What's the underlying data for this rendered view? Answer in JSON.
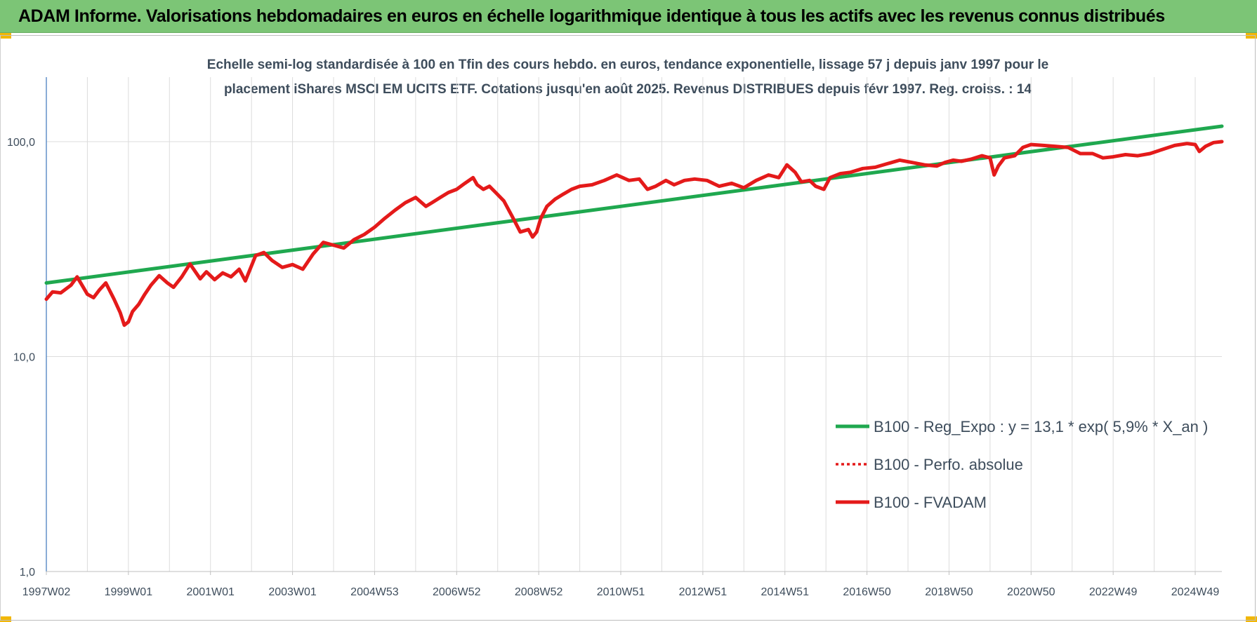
{
  "header": {
    "title": "ADAM Informe. Valorisations hebdomadaires en euros en échelle logarithmique identique à tous les actifs avec les revenus connus distribués"
  },
  "colors": {
    "header_bg": "#7cc576",
    "trend": "#1fa84f",
    "series": "#e41a1a",
    "grid": "#dcdcdc",
    "axis": "#4a7fbf",
    "text": "#3e4d5c"
  },
  "chart_data": {
    "type": "line",
    "title": "Echelle semi-log standardisée à 100 en Tfin des cours hebdo. en euros, tendance exponentielle, lissage 57 j depuis janv 1997 pour le",
    "subtitle": "placement iShares MSCI EM UCITS ETF. Cotations jusqu'en août 2025. Revenus DISTRIBUES depuis févr 1997. Reg. croiss. : 14",
    "y_scale": "log",
    "ylim": [
      1,
      200
    ],
    "y_ticks": [
      "1,0",
      "10,0",
      "100,0"
    ],
    "y_tick_values": [
      1,
      10,
      100
    ],
    "xlim": [
      1997.0,
      2025.65
    ],
    "x_ticks": [
      {
        "label": "1997W02",
        "x": 1997.0
      },
      {
        "label": "1999W01",
        "x": 1999.0
      },
      {
        "label": "2001W01",
        "x": 2001.0
      },
      {
        "label": "2003W01",
        "x": 2003.0
      },
      {
        "label": "2004W53",
        "x": 2005.0
      },
      {
        "label": "2006W52",
        "x": 2007.0
      },
      {
        "label": "2008W52",
        "x": 2009.0
      },
      {
        "label": "2010W51",
        "x": 2011.0
      },
      {
        "label": "2012W51",
        "x": 2013.0
      },
      {
        "label": "2014W51",
        "x": 2015.0
      },
      {
        "label": "2016W50",
        "x": 2017.0
      },
      {
        "label": "2018W50",
        "x": 2019.0
      },
      {
        "label": "2020W50",
        "x": 2021.0
      },
      {
        "label": "2022W49",
        "x": 2023.0
      },
      {
        "label": "2024W49",
        "x": 2025.0
      }
    ],
    "grid": "vertical and horizontal",
    "legend_position": "bottom-right",
    "series": [
      {
        "name": "B100 - Reg_Expo : y = 13,1 * exp( 5,9% *  X_an )",
        "color": "#1fa84f",
        "style": "solid",
        "x": [
          1997.0,
          2025.65
        ],
        "y": [
          22,
          118
        ]
      },
      {
        "name": "B100 - Perfo. absolue",
        "color": "#e41a1a",
        "style": "dotted",
        "x": [],
        "y": []
      },
      {
        "name": "B100 - FVADAM",
        "color": "#e41a1a",
        "style": "solid",
        "x": [
          1997.0,
          1997.15,
          1997.35,
          1997.6,
          1997.75,
          1997.9,
          1998.0,
          1998.15,
          1998.3,
          1998.45,
          1998.65,
          1998.8,
          1998.9,
          1999.0,
          1999.1,
          1999.25,
          1999.4,
          1999.55,
          1999.75,
          1999.95,
          2000.1,
          2000.3,
          2000.5,
          2000.75,
          2000.9,
          2001.1,
          2001.3,
          2001.5,
          2001.7,
          2001.85,
          2002.1,
          2002.3,
          2002.5,
          2002.75,
          2003.0,
          2003.25,
          2003.5,
          2003.75,
          2004.0,
          2004.25,
          2004.5,
          2004.75,
          2005.0,
          2005.25,
          2005.5,
          2005.75,
          2006.0,
          2006.25,
          2006.4,
          2006.6,
          2006.8,
          2007.0,
          2007.2,
          2007.4,
          2007.5,
          2007.65,
          2007.8,
          2007.95,
          2008.15,
          2008.35,
          2008.55,
          2008.75,
          2008.85,
          2008.95,
          2009.05,
          2009.2,
          2009.4,
          2009.6,
          2009.8,
          2010.0,
          2010.3,
          2010.6,
          2010.9,
          2011.2,
          2011.45,
          2011.65,
          2011.85,
          2012.1,
          2012.3,
          2012.55,
          2012.8,
          2013.1,
          2013.4,
          2013.7,
          2014.0,
          2014.3,
          2014.6,
          2014.85,
          2015.05,
          2015.25,
          2015.4,
          2015.6,
          2015.75,
          2015.95,
          2016.1,
          2016.35,
          2016.6,
          2016.9,
          2017.2,
          2017.5,
          2017.8,
          2018.1,
          2018.4,
          2018.7,
          2018.9,
          2019.1,
          2019.3,
          2019.55,
          2019.8,
          2020.0,
          2020.1,
          2020.2,
          2020.35,
          2020.6,
          2020.8,
          2021.0,
          2021.3,
          2021.6,
          2021.9,
          2022.2,
          2022.5,
          2022.75,
          2023.0,
          2023.3,
          2023.6,
          2023.9,
          2024.2,
          2024.5,
          2024.8,
          2025.0,
          2025.1,
          2025.25,
          2025.45,
          2025.65
        ],
        "y": [
          18.5,
          20,
          19.8,
          21.5,
          23.5,
          21,
          19.5,
          18.8,
          20.5,
          22,
          18.5,
          16,
          14,
          14.5,
          16.2,
          17.5,
          19.5,
          21.5,
          23.8,
          22,
          21,
          23.5,
          27,
          23,
          24.8,
          22.8,
          24.5,
          23.5,
          25.5,
          22.5,
          29.5,
          30.5,
          28,
          26,
          26.8,
          25.5,
          30,
          34,
          33,
          32,
          35,
          37,
          40,
          44,
          48,
          52,
          55,
          50,
          52,
          55,
          58,
          60,
          64,
          68,
          63,
          60,
          62,
          58,
          53,
          45,
          38,
          39,
          36,
          38,
          44,
          50,
          54,
          57,
          60,
          62,
          63,
          66,
          70,
          66,
          67,
          60,
          62,
          66,
          63,
          66,
          67,
          66,
          62,
          64,
          61,
          66,
          70,
          68,
          78,
          72,
          65,
          66,
          62,
          60,
          68,
          71,
          72,
          75,
          76,
          79,
          82,
          80,
          78,
          77,
          80,
          82,
          81,
          83,
          86,
          84,
          70,
          77,
          84,
          86,
          94,
          97,
          96,
          95,
          94,
          88,
          88,
          84,
          85,
          87,
          86,
          88,
          92,
          96,
          98,
          97,
          90,
          95,
          99,
          100
        ]
      }
    ]
  }
}
